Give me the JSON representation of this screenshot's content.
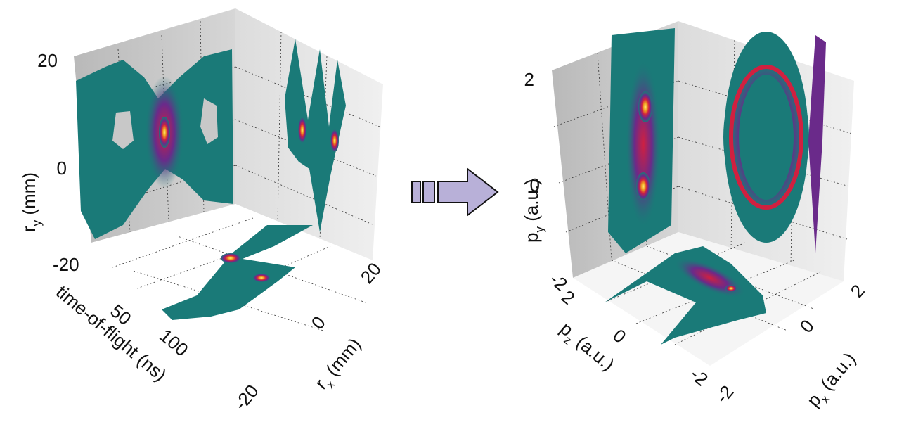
{
  "left_panel": {
    "ry_axis": {
      "symbol": "r",
      "subscript": "y",
      "unit": " (mm)",
      "ticks": [
        "20",
        "0",
        "-20"
      ]
    },
    "tof_axis": {
      "label": "time-of-flight (ns)",
      "ticks": [
        "50",
        "100"
      ]
    },
    "rx_axis": {
      "symbol": "r",
      "subscript": "x",
      "unit": " (mm)",
      "ticks": [
        "20",
        "0",
        "-20"
      ]
    }
  },
  "right_panel": {
    "py_axis": {
      "symbol": "p",
      "subscript": "y",
      "unit": " (a.u.)",
      "ticks": [
        "2",
        "0",
        "-2"
      ]
    },
    "pz_axis": {
      "symbol": "p",
      "subscript": "z",
      "unit": " (a.u.)",
      "ticks": [
        "2",
        "0",
        "-2"
      ]
    },
    "px_axis": {
      "symbol": "p",
      "subscript": "x",
      "unit": " (a.u.)",
      "ticks": [
        "2",
        "0",
        "-2"
      ]
    }
  }
}
